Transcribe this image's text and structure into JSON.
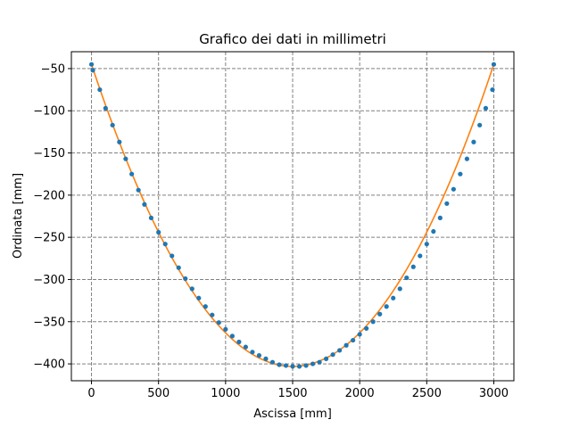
{
  "chart_data": {
    "type": "scatter",
    "title": "Grafico dei dati in millimetri",
    "xlabel": "Ascissa [mm]",
    "ylabel": "Ordinata [mm]",
    "xlim": [
      -150,
      3150
    ],
    "ylim": [
      -420,
      -30
    ],
    "xticks": [
      0,
      500,
      1000,
      1500,
      2000,
      2500,
      3000
    ],
    "yticks": [
      -50,
      -100,
      -150,
      -200,
      -250,
      -300,
      -350,
      -400
    ],
    "grid": true,
    "grid_style": "dashed",
    "series": [
      {
        "kind": "points",
        "color": "#1f77b4",
        "x": [
          0,
          10,
          62,
          105,
          157,
          208,
          255,
          300,
          350,
          395,
          445,
          500,
          550,
          600,
          650,
          700,
          750,
          800,
          850,
          900,
          950,
          1000,
          1050,
          1100,
          1150,
          1200,
          1250,
          1300,
          1350,
          1400,
          1450,
          1500,
          1550,
          1600,
          1650,
          1700,
          1750,
          1800,
          1850,
          1900,
          1950,
          2000,
          2050,
          2100,
          2150,
          2200,
          2250,
          2300,
          2350,
          2400,
          2450,
          2500,
          2550,
          2600,
          2650,
          2700,
          2750,
          2800,
          2850,
          2895,
          2940,
          2990,
          3000
        ],
        "y": [
          -45,
          -52,
          -75,
          -97,
          -117,
          -137,
          -157,
          -175,
          -194,
          -211,
          -227,
          -244,
          -258,
          -272,
          -286,
          -299,
          -311,
          -322,
          -332,
          -342,
          -351,
          -359,
          -367,
          -374,
          -380,
          -386,
          -390,
          -394,
          -398,
          -401,
          -402,
          -403,
          -403,
          -402,
          -400,
          -398,
          -394,
          -389,
          -384,
          -378,
          -372,
          -365,
          -358,
          -350,
          -341,
          -332,
          -322,
          -311,
          -298,
          -285,
          -272,
          -258,
          -243,
          -227,
          -210,
          -193,
          -175,
          -157,
          -137,
          -117,
          -97,
          -75,
          -45
        ]
      },
      {
        "kind": "line",
        "color": "#ff7f0e",
        "formula": "quadratic through (0,-45), (1500,-403), (3000,-45)"
      }
    ]
  }
}
